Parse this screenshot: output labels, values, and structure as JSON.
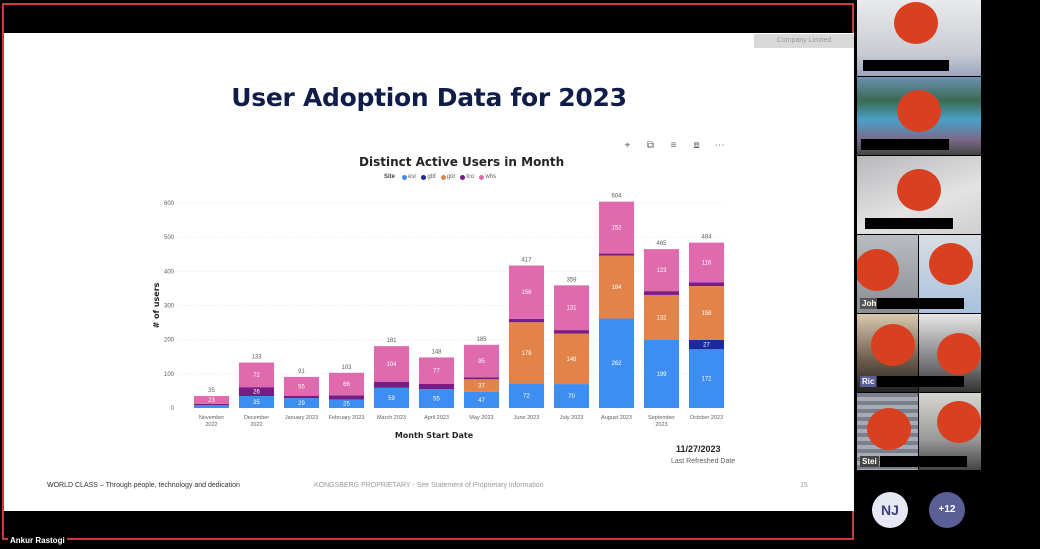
{
  "meeting": {
    "presenter_name": "Ankur Rastogi",
    "overflow_avatar_initials": "NJ",
    "overflow_count_label": "+12",
    "participants": [
      {
        "name_visible": ""
      },
      {
        "name_visible": ""
      },
      {
        "name_visible": ""
      },
      {
        "name_visible": "Joh"
      },
      {
        "name_visible": ""
      },
      {
        "name_visible": "Ric"
      },
      {
        "name_visible": ""
      },
      {
        "name_visible": "Stei"
      },
      {
        "name_visible": ""
      }
    ]
  },
  "slide": {
    "company_tag": "Company Limited",
    "title": "User Adoption Data for 2023",
    "footer_left": "WORLD CLASS  –  Through people, technology and dedication",
    "footer_mid": "KONGSBERG PROPRIETARY  - See Statement of Proprietary information",
    "page_number": "15",
    "refresh_date": "11/27/2023",
    "refresh_label": "Last Refreshed Date",
    "toolbar_icons": [
      "pin-icon",
      "copy-icon",
      "filter-icon",
      "focus-mode-icon",
      "more-options-icon"
    ],
    "toolbar_glyphs": [
      "⌖",
      "⧉",
      "≡",
      "⧈",
      "⋯"
    ]
  },
  "chart_data": {
    "type": "bar",
    "stacked": true,
    "title": "Distinct Active Users in Month",
    "legend_title": "Site",
    "legend_position": "top-left",
    "xlabel": "Month Start Date",
    "ylabel": "# of users",
    "ylim": [
      0,
      600
    ],
    "yticks": [
      0,
      100,
      200,
      300,
      400,
      500,
      600
    ],
    "grid": true,
    "categories": [
      [
        "November",
        "2022"
      ],
      [
        "December",
        "2022"
      ],
      [
        "January 2023"
      ],
      [
        "February 2023"
      ],
      [
        "March 2023"
      ],
      [
        "April 2023"
      ],
      [
        "May 2023"
      ],
      [
        "June 2023"
      ],
      [
        "July 2023"
      ],
      [
        "August 2023"
      ],
      [
        "September",
        "2023"
      ],
      [
        "October 2023"
      ]
    ],
    "series": [
      {
        "name": "esr",
        "color": "#3d8ef0",
        "values": [
          8,
          35,
          29,
          25,
          59,
          55,
          47,
          72,
          70,
          262,
          199,
          172
        ],
        "labeled": [
          false,
          true,
          true,
          true,
          true,
          true,
          true,
          true,
          true,
          true,
          true,
          true
        ]
      },
      {
        "name": "gbf",
        "color": "#1b2a9c",
        "values": [
          0,
          0,
          0,
          0,
          0,
          0,
          0,
          0,
          0,
          0,
          0,
          27
        ],
        "labeled": [
          false,
          false,
          false,
          false,
          false,
          false,
          false,
          false,
          false,
          false,
          false,
          true
        ]
      },
      {
        "name": "gor",
        "color": "#e2844a",
        "values": [
          0,
          0,
          0,
          0,
          0,
          0,
          37,
          179,
          148,
          184,
          132,
          158
        ],
        "labeled": [
          false,
          false,
          false,
          false,
          false,
          false,
          true,
          true,
          true,
          true,
          true,
          true
        ]
      },
      {
        "name": "tco",
        "color": "#7a1c86",
        "values": [
          4,
          26,
          7,
          12,
          18,
          16,
          6,
          10,
          10,
          6,
          11,
          11
        ],
        "labeled": [
          false,
          true,
          false,
          false,
          false,
          false,
          false,
          false,
          false,
          false,
          false,
          false
        ]
      },
      {
        "name": "whs",
        "color": "#df6aad",
        "values": [
          23,
          72,
          55,
          66,
          104,
          77,
          95,
          156,
          131,
          152,
          123,
          116
        ],
        "labeled": [
          true,
          true,
          true,
          true,
          true,
          true,
          true,
          true,
          true,
          true,
          true,
          true
        ]
      }
    ],
    "totals": [
      35,
      133,
      91,
      103,
      181,
      148,
      185,
      417,
      359,
      604,
      465,
      484
    ]
  }
}
